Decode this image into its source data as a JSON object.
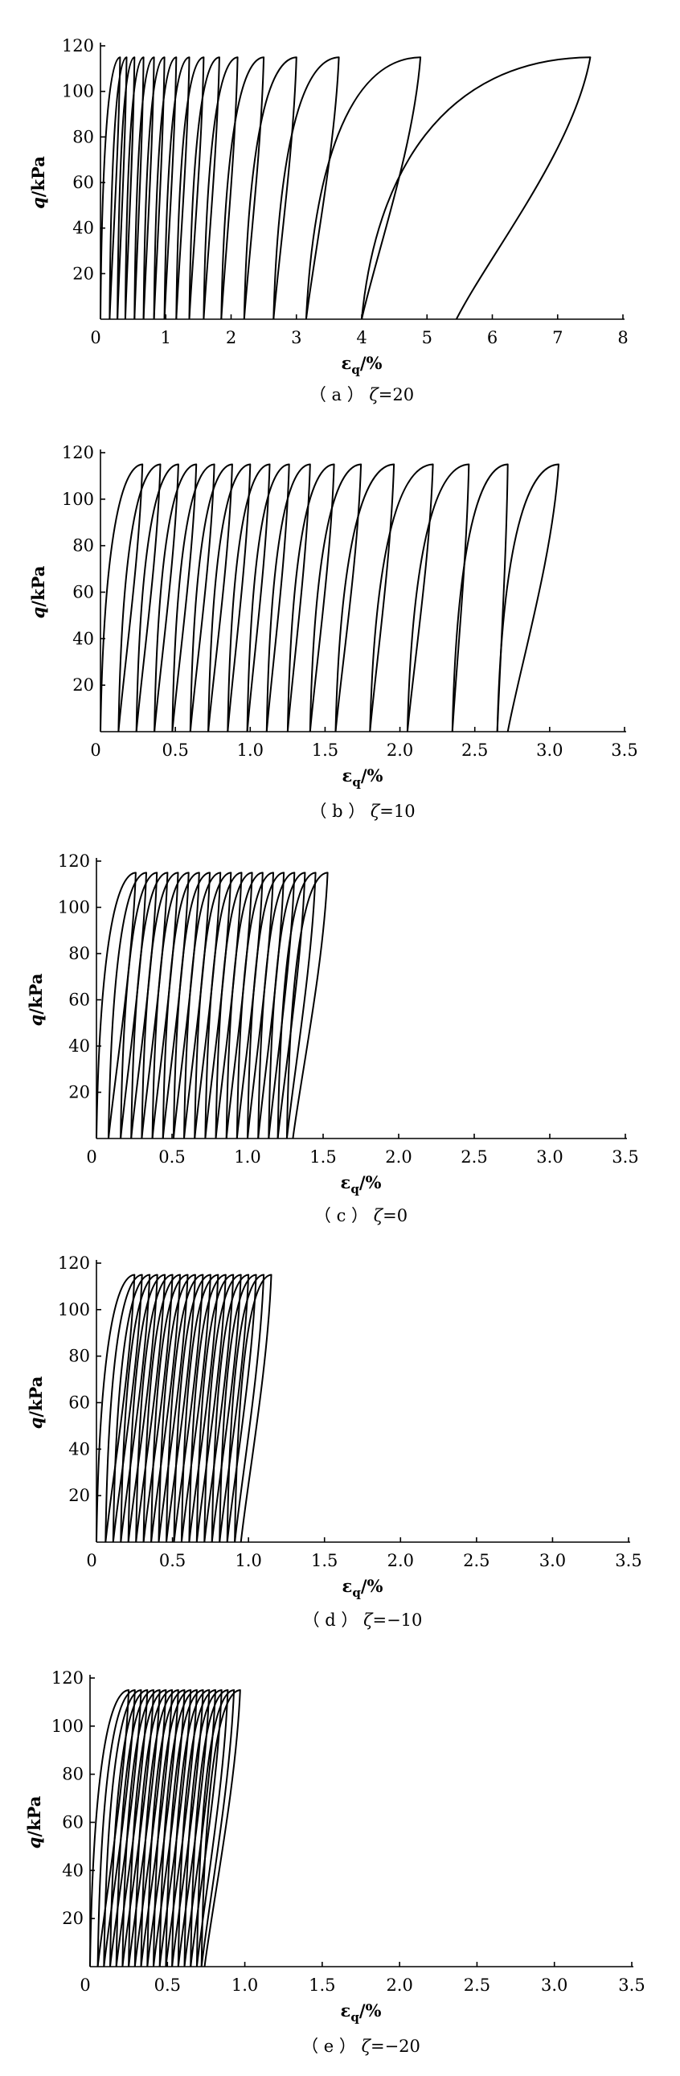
{
  "chart_data": [
    {
      "type": "line",
      "panel_label": "（ a ）",
      "zeta_symbol": "ζ",
      "zeta_value": "=20",
      "ylabel_var": "q",
      "ylabel_unit": "/kPa",
      "xlabel_var": "ε",
      "xlabel_sub": "q",
      "xlabel_unit": "/%",
      "xlim": [
        0,
        8
      ],
      "ylim": [
        0,
        120
      ],
      "xticks": [
        "0",
        "1",
        "2",
        "3",
        "4",
        "5",
        "6",
        "7",
        "8"
      ],
      "yticks": [
        "20",
        "40",
        "60",
        "80",
        "100",
        "120"
      ],
      "q_max": 115,
      "cycles": [
        {
          "start": 0.0,
          "peak": 0.3,
          "end": 0.14
        },
        {
          "start": 0.14,
          "peak": 0.4,
          "end": 0.26
        },
        {
          "start": 0.26,
          "peak": 0.52,
          "end": 0.38
        },
        {
          "start": 0.38,
          "peak": 0.66,
          "end": 0.52
        },
        {
          "start": 0.52,
          "peak": 0.82,
          "end": 0.66
        },
        {
          "start": 0.66,
          "peak": 0.98,
          "end": 0.82
        },
        {
          "start": 0.82,
          "peak": 1.16,
          "end": 0.98
        },
        {
          "start": 0.98,
          "peak": 1.36,
          "end": 1.16
        },
        {
          "start": 1.16,
          "peak": 1.58,
          "end": 1.36
        },
        {
          "start": 1.36,
          "peak": 1.82,
          "end": 1.58
        },
        {
          "start": 1.58,
          "peak": 2.1,
          "end": 1.85
        },
        {
          "start": 1.85,
          "peak": 2.5,
          "end": 2.2
        },
        {
          "start": 2.2,
          "peak": 3.0,
          "end": 2.65
        },
        {
          "start": 2.65,
          "peak": 3.65,
          "end": 3.15
        },
        {
          "start": 3.15,
          "peak": 4.9,
          "end": 4.0
        },
        {
          "start": 4.0,
          "peak": 7.5,
          "end": 5.45
        }
      ]
    },
    {
      "type": "line",
      "panel_label": "（ b ）",
      "zeta_symbol": "ζ",
      "zeta_value": "=10",
      "ylabel_var": "q",
      "ylabel_unit": "/kPa",
      "xlabel_var": "ε",
      "xlabel_sub": "q",
      "xlabel_unit": "/%",
      "xlim": [
        0,
        3.5
      ],
      "ylim": [
        0,
        120
      ],
      "xticks": [
        "0",
        "0.5",
        "1.0",
        "1.5",
        "2.0",
        "2.5",
        "3.0",
        "3.5"
      ],
      "yticks": [
        "20",
        "40",
        "60",
        "80",
        "100",
        "120"
      ],
      "q_max": 115,
      "cycles": [
        {
          "start": 0.0,
          "peak": 0.28,
          "end": 0.12
        },
        {
          "start": 0.12,
          "peak": 0.4,
          "end": 0.24
        },
        {
          "start": 0.24,
          "peak": 0.52,
          "end": 0.36
        },
        {
          "start": 0.36,
          "peak": 0.64,
          "end": 0.48
        },
        {
          "start": 0.48,
          "peak": 0.76,
          "end": 0.6
        },
        {
          "start": 0.6,
          "peak": 0.88,
          "end": 0.72
        },
        {
          "start": 0.72,
          "peak": 1.0,
          "end": 0.85
        },
        {
          "start": 0.85,
          "peak": 1.13,
          "end": 0.98
        },
        {
          "start": 0.98,
          "peak": 1.26,
          "end": 1.11
        },
        {
          "start": 1.11,
          "peak": 1.4,
          "end": 1.25
        },
        {
          "start": 1.25,
          "peak": 1.56,
          "end": 1.4
        },
        {
          "start": 1.4,
          "peak": 1.74,
          "end": 1.57
        },
        {
          "start": 1.57,
          "peak": 1.96,
          "end": 1.8
        },
        {
          "start": 1.8,
          "peak": 2.22,
          "end": 2.05
        },
        {
          "start": 2.05,
          "peak": 2.46,
          "end": 2.35
        },
        {
          "start": 2.35,
          "peak": 2.72,
          "end": 2.65
        },
        {
          "start": 2.65,
          "peak": 3.06,
          "end": 2.72
        }
      ]
    },
    {
      "type": "line",
      "panel_label": "（ c ）",
      "zeta_symbol": "ζ",
      "zeta_value": "=0",
      "ylabel_var": "q",
      "ylabel_unit": "/kPa",
      "xlabel_var": "ε",
      "xlabel_sub": "q",
      "xlabel_unit": "/%",
      "xlim": [
        0,
        3.5
      ],
      "ylim": [
        0,
        120
      ],
      "xticks": [
        "0",
        "0.5",
        "1.0",
        "1.5",
        "2.0",
        "2.5",
        "3.0",
        "3.5"
      ],
      "yticks": [
        "20",
        "40",
        "60",
        "80",
        "100",
        "120"
      ],
      "q_max": 115,
      "cycles": [
        {
          "start": 0.0,
          "peak": 0.26,
          "end": 0.08
        },
        {
          "start": 0.08,
          "peak": 0.33,
          "end": 0.16
        },
        {
          "start": 0.16,
          "peak": 0.4,
          "end": 0.23
        },
        {
          "start": 0.23,
          "peak": 0.47,
          "end": 0.3
        },
        {
          "start": 0.3,
          "peak": 0.54,
          "end": 0.37
        },
        {
          "start": 0.37,
          "peak": 0.61,
          "end": 0.44
        },
        {
          "start": 0.44,
          "peak": 0.68,
          "end": 0.51
        },
        {
          "start": 0.51,
          "peak": 0.75,
          "end": 0.58
        },
        {
          "start": 0.58,
          "peak": 0.82,
          "end": 0.65
        },
        {
          "start": 0.65,
          "peak": 0.89,
          "end": 0.72
        },
        {
          "start": 0.72,
          "peak": 0.96,
          "end": 0.79
        },
        {
          "start": 0.79,
          "peak": 1.03,
          "end": 0.86
        },
        {
          "start": 0.86,
          "peak": 1.1,
          "end": 0.93
        },
        {
          "start": 0.93,
          "peak": 1.17,
          "end": 1.0
        },
        {
          "start": 1.0,
          "peak": 1.24,
          "end": 1.07
        },
        {
          "start": 1.07,
          "peak": 1.31,
          "end": 1.14
        },
        {
          "start": 1.14,
          "peak": 1.38,
          "end": 1.2
        },
        {
          "start": 1.2,
          "peak": 1.45,
          "end": 1.26
        },
        {
          "start": 1.26,
          "peak": 1.53,
          "end": 1.3
        }
      ]
    },
    {
      "type": "line",
      "panel_label": "（ d ）",
      "zeta_symbol": "ζ",
      "zeta_value": "=−10",
      "ylabel_var": "q",
      "ylabel_unit": "/kPa",
      "xlabel_var": "ε",
      "xlabel_sub": "q",
      "xlabel_unit": "/%",
      "xlim": [
        0,
        3.5
      ],
      "ylim": [
        0,
        120
      ],
      "xticks": [
        "0",
        "0.5",
        "1.0",
        "1.5",
        "2.0",
        "2.5",
        "3.0",
        "3.5"
      ],
      "yticks": [
        "20",
        "40",
        "60",
        "80",
        "100",
        "120"
      ],
      "q_max": 115,
      "cycles": [
        {
          "start": 0.0,
          "peak": 0.25,
          "end": 0.06
        },
        {
          "start": 0.06,
          "peak": 0.3,
          "end": 0.11
        },
        {
          "start": 0.11,
          "peak": 0.35,
          "end": 0.16
        },
        {
          "start": 0.16,
          "peak": 0.4,
          "end": 0.21
        },
        {
          "start": 0.21,
          "peak": 0.45,
          "end": 0.26
        },
        {
          "start": 0.26,
          "peak": 0.5,
          "end": 0.31
        },
        {
          "start": 0.31,
          "peak": 0.55,
          "end": 0.36
        },
        {
          "start": 0.36,
          "peak": 0.6,
          "end": 0.41
        },
        {
          "start": 0.41,
          "peak": 0.65,
          "end": 0.46
        },
        {
          "start": 0.46,
          "peak": 0.7,
          "end": 0.51
        },
        {
          "start": 0.51,
          "peak": 0.75,
          "end": 0.56
        },
        {
          "start": 0.56,
          "peak": 0.8,
          "end": 0.61
        },
        {
          "start": 0.61,
          "peak": 0.85,
          "end": 0.66
        },
        {
          "start": 0.66,
          "peak": 0.9,
          "end": 0.71
        },
        {
          "start": 0.71,
          "peak": 0.95,
          "end": 0.76
        },
        {
          "start": 0.76,
          "peak": 1.0,
          "end": 0.81
        },
        {
          "start": 0.81,
          "peak": 1.05,
          "end": 0.86
        },
        {
          "start": 0.86,
          "peak": 1.1,
          "end": 0.91
        },
        {
          "start": 0.91,
          "peak": 1.15,
          "end": 0.95
        }
      ]
    },
    {
      "type": "line",
      "panel_label": "（ e ）",
      "zeta_symbol": "ζ",
      "zeta_value": "=−20",
      "ylabel_var": "q",
      "ylabel_unit": "/kPa",
      "xlabel_var": "ε",
      "xlabel_sub": "q",
      "xlabel_unit": "/%",
      "xlim": [
        0,
        3.5
      ],
      "ylim": [
        0,
        120
      ],
      "xticks": [
        "0",
        "0.5",
        "1.0",
        "1.5",
        "2.0",
        "2.5",
        "3.0",
        "3.5"
      ],
      "yticks": [
        "20",
        "40",
        "60",
        "80",
        "100",
        "120"
      ],
      "q_max": 115,
      "cycles": [
        {
          "start": 0.0,
          "peak": 0.25,
          "end": 0.05
        },
        {
          "start": 0.05,
          "peak": 0.29,
          "end": 0.09
        },
        {
          "start": 0.09,
          "peak": 0.33,
          "end": 0.13
        },
        {
          "start": 0.13,
          "peak": 0.37,
          "end": 0.17
        },
        {
          "start": 0.17,
          "peak": 0.41,
          "end": 0.21
        },
        {
          "start": 0.21,
          "peak": 0.45,
          "end": 0.25
        },
        {
          "start": 0.25,
          "peak": 0.49,
          "end": 0.29
        },
        {
          "start": 0.29,
          "peak": 0.53,
          "end": 0.33
        },
        {
          "start": 0.33,
          "peak": 0.57,
          "end": 0.37
        },
        {
          "start": 0.37,
          "peak": 0.61,
          "end": 0.41
        },
        {
          "start": 0.41,
          "peak": 0.65,
          "end": 0.45
        },
        {
          "start": 0.45,
          "peak": 0.69,
          "end": 0.49
        },
        {
          "start": 0.49,
          "peak": 0.73,
          "end": 0.53
        },
        {
          "start": 0.53,
          "peak": 0.77,
          "end": 0.57
        },
        {
          "start": 0.57,
          "peak": 0.81,
          "end": 0.61
        },
        {
          "start": 0.61,
          "peak": 0.85,
          "end": 0.65
        },
        {
          "start": 0.65,
          "peak": 0.89,
          "end": 0.69
        },
        {
          "start": 0.69,
          "peak": 0.93,
          "end": 0.72
        },
        {
          "start": 0.72,
          "peak": 0.97,
          "end": 0.74
        }
      ]
    }
  ]
}
